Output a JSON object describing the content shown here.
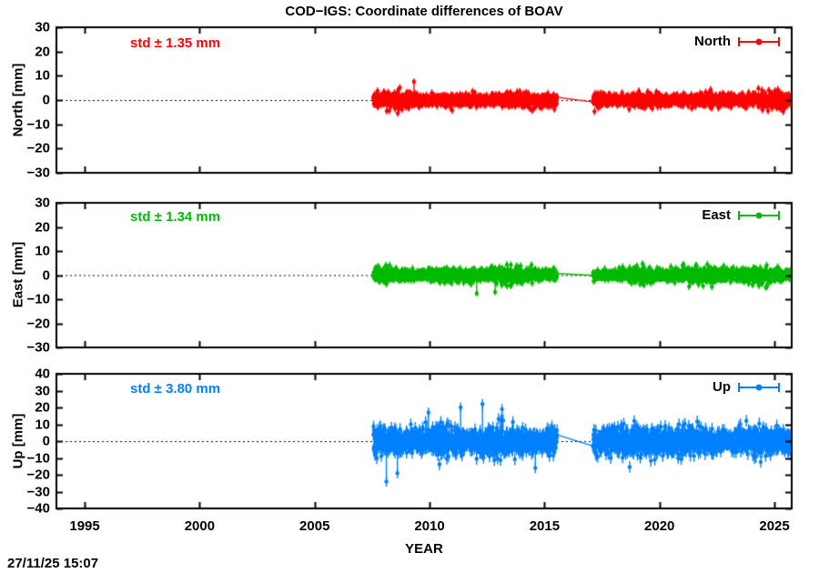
{
  "title": "COD−IGS: Coordinate differences of BOAV",
  "timestamp": "27/11/25 15:07",
  "x_axis": {
    "label": "YEAR"
  },
  "chart_data": {
    "type": "scatter",
    "title": "COD−IGS: Coordinate differences of BOAV",
    "xlabel": "YEAR",
    "xlim": [
      1993.77,
      2025.75
    ],
    "xticks": [
      1995,
      2000,
      2005,
      2010,
      2015,
      2020,
      2025
    ],
    "data_segments": [
      [
        2007.55,
        2015.55
      ],
      [
        2017.1,
        2025.72
      ]
    ],
    "gap_connector": true,
    "points_per_year": 130,
    "grid": false,
    "zero_line": "dotted",
    "legend_position": "top-right-inside",
    "panels": [
      {
        "name": "North",
        "ylabel": "North [mm]",
        "legend_label": "North",
        "std_label": "std ± 1.35 mm",
        "std_mm": 1.35,
        "color": "#ff0000",
        "ylim": [
          -30,
          30
        ],
        "yticks": [
          30,
          20,
          10,
          0,
          -10,
          -20,
          -30
        ],
        "point_err_mm": 1.5,
        "outliers": [
          {
            "x": 2009.32,
            "y": 7.6,
            "err": 1.3
          }
        ]
      },
      {
        "name": "East",
        "ylabel": "East [mm]",
        "legend_label": "East",
        "std_label": "std ± 1.34 mm",
        "std_mm": 1.34,
        "color": "#00bb00",
        "ylim": [
          -30,
          30
        ],
        "yticks": [
          30,
          20,
          10,
          0,
          -10,
          -20,
          -30
        ],
        "point_err_mm": 1.5,
        "outliers": [
          {
            "x": 2012.05,
            "y": -7.6,
            "err": 1.3
          },
          {
            "x": 2012.85,
            "y": -7.1,
            "err": 1.3
          }
        ]
      },
      {
        "name": "Up",
        "ylabel": "Up [mm]",
        "legend_label": "Up",
        "std_label": "std ± 3.80 mm",
        "std_mm": 3.8,
        "color": "#0080ff",
        "ylim": [
          -40,
          40
        ],
        "yticks": [
          40,
          30,
          20,
          10,
          0,
          -10,
          -20,
          -30,
          -40
        ],
        "point_err_mm": 3.5,
        "outliers": [
          {
            "x": 2008.12,
            "y": -24,
            "err": 3
          },
          {
            "x": 2008.6,
            "y": -19,
            "err": 3
          },
          {
            "x": 2009.95,
            "y": 17,
            "err": 3
          },
          {
            "x": 2011.35,
            "y": 20,
            "err": 3
          },
          {
            "x": 2012.3,
            "y": 22,
            "err": 3
          },
          {
            "x": 2013.15,
            "y": 19,
            "err": 3
          },
          {
            "x": 2014.6,
            "y": -16,
            "err": 3
          }
        ]
      }
    ]
  }
}
